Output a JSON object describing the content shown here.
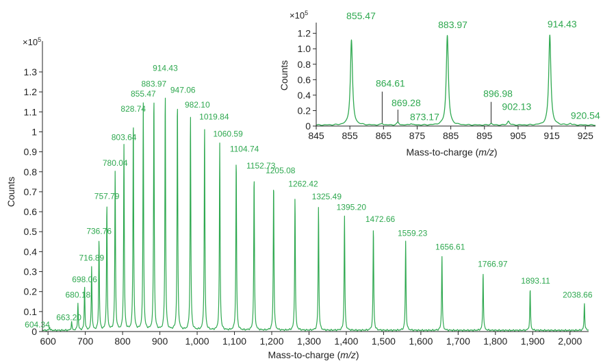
{
  "colors": {
    "spectrum": "#2ea84f",
    "axis": "#222222"
  },
  "chart_data": [
    {
      "type": "line",
      "title": "",
      "xlabel_prefix": "Mass-to-charge (",
      "xlabel_italic": "m/z",
      "xlabel_suffix": ")",
      "ylabel": "Counts",
      "y_multiplier_base": "×10",
      "y_multiplier_exp": "5",
      "xlim": [
        585,
        2050
      ],
      "ylim": [
        0,
        1.42
      ],
      "x_ticks": [
        600,
        700,
        800,
        900,
        1000,
        1100,
        1200,
        1300,
        1400,
        1500,
        1600,
        1700,
        1800,
        1900,
        2000
      ],
      "x_tick_labels": [
        "600",
        "700",
        "800",
        "900",
        "1,000",
        "1,100",
        "1,200",
        "1,300",
        "1,400",
        "1,500",
        "1,600",
        "1,700",
        "1,800",
        "1,900",
        "2,000"
      ],
      "y_ticks": [
        0,
        0.1,
        0.2,
        0.3,
        0.4,
        0.5,
        0.6,
        0.7,
        0.8,
        0.9,
        1,
        1.1,
        1.2,
        1.3
      ],
      "y_tick_labels": [
        "0",
        "0.1",
        "0.2",
        "0.3",
        "0.4",
        "0.5",
        "0.6",
        "0.7",
        "0.8",
        "0.9",
        "1",
        "1.1",
        "1.2",
        "1.3"
      ],
      "grid": false,
      "peaks": [
        {
          "x": 604.34,
          "y": 0.018,
          "label": "604.34"
        },
        {
          "x": 663.2,
          "y": 0.043,
          "label": "663.20"
        },
        {
          "x": 680.18,
          "y": 0.135,
          "label": "680.18"
        },
        {
          "x": 698.06,
          "y": 0.22,
          "label": "698.06"
        },
        {
          "x": 716.89,
          "y": 0.32,
          "label": "716.89"
        },
        {
          "x": 736.76,
          "y": 0.455,
          "label": "736.76"
        },
        {
          "x": 757.79,
          "y": 0.63,
          "label": "757.79"
        },
        {
          "x": 780.04,
          "y": 0.795,
          "label": "780.04"
        },
        {
          "x": 803.64,
          "y": 0.925,
          "label": "803.64"
        },
        {
          "x": 828.74,
          "y": 1.06,
          "label": "828.74"
        },
        {
          "x": 855.47,
          "y": 1.135,
          "label": "855.47"
        },
        {
          "x": 883.97,
          "y": 1.185,
          "label": "883.97"
        },
        {
          "x": 914.43,
          "y": 1.195,
          "label": "914.43"
        },
        {
          "x": 947.06,
          "y": 1.155,
          "label": "947.06"
        },
        {
          "x": 982.1,
          "y": 1.08,
          "label": "982.10"
        },
        {
          "x": 1019.84,
          "y": 1.02,
          "label": "1019.84"
        },
        {
          "x": 1060.59,
          "y": 0.935,
          "label": "1060.59"
        },
        {
          "x": 1104.74,
          "y": 0.86,
          "label": "1104.74"
        },
        {
          "x": 1152.73,
          "y": 0.775,
          "label": "1152.73"
        },
        {
          "x": 1205.08,
          "y": 0.745,
          "label": "1205.08"
        },
        {
          "x": 1262.42,
          "y": 0.67,
          "label": "1262.42"
        },
        {
          "x": 1325.49,
          "y": 0.62,
          "label": "1325.49"
        },
        {
          "x": 1395.2,
          "y": 0.575,
          "label": "1395.20"
        },
        {
          "x": 1472.66,
          "y": 0.515,
          "label": "1472.66"
        },
        {
          "x": 1559.23,
          "y": 0.445,
          "label": "1559.23"
        },
        {
          "x": 1656.61,
          "y": 0.375,
          "label": "1656.61"
        },
        {
          "x": 1766.97,
          "y": 0.29,
          "label": "1766.97"
        },
        {
          "x": 1893.11,
          "y": 0.205,
          "label": "1893.11"
        },
        {
          "x": 2038.66,
          "y": 0.135,
          "label": "2038.66"
        }
      ]
    },
    {
      "type": "line",
      "title": "",
      "xlabel_prefix": "Mass-to-charge (",
      "xlabel_italic": "m/z",
      "xlabel_suffix": ")",
      "ylabel": "Counts",
      "y_multiplier_base": "×10",
      "y_multiplier_exp": "5",
      "xlim": [
        845,
        928
      ],
      "ylim": [
        0,
        1.25
      ],
      "x_ticks": [
        845,
        855,
        865,
        875,
        885,
        895,
        905,
        915,
        925
      ],
      "x_tick_labels": [
        "845",
        "855",
        "865",
        "875",
        "885",
        "895",
        "905",
        "915",
        "925"
      ],
      "y_ticks": [
        0,
        0.2,
        0.4,
        0.6,
        0.8,
        1.0,
        1.2
      ],
      "y_tick_labels": [
        "0",
        "0.2",
        "0.4",
        "0.6",
        "0.8",
        "1.0",
        "1.2"
      ],
      "grid": false,
      "peaks": [
        {
          "x": 855.47,
          "y": 1.1,
          "label": "855.47"
        },
        {
          "x": 864.61,
          "y": 0.02,
          "label": "864.61"
        },
        {
          "x": 869.28,
          "y": 0.035,
          "label": "869.28"
        },
        {
          "x": 873.17,
          "y": 0.02,
          "label": "873.17"
        },
        {
          "x": 883.97,
          "y": 1.16,
          "label": "883.97"
        },
        {
          "x": 896.98,
          "y": 0.02,
          "label": "896.98"
        },
        {
          "x": 902.13,
          "y": 0.05,
          "label": "902.13"
        },
        {
          "x": 914.43,
          "y": 1.17,
          "label": "914.43"
        },
        {
          "x": 920.54,
          "y": 0.02,
          "label": "920.54"
        }
      ]
    }
  ]
}
